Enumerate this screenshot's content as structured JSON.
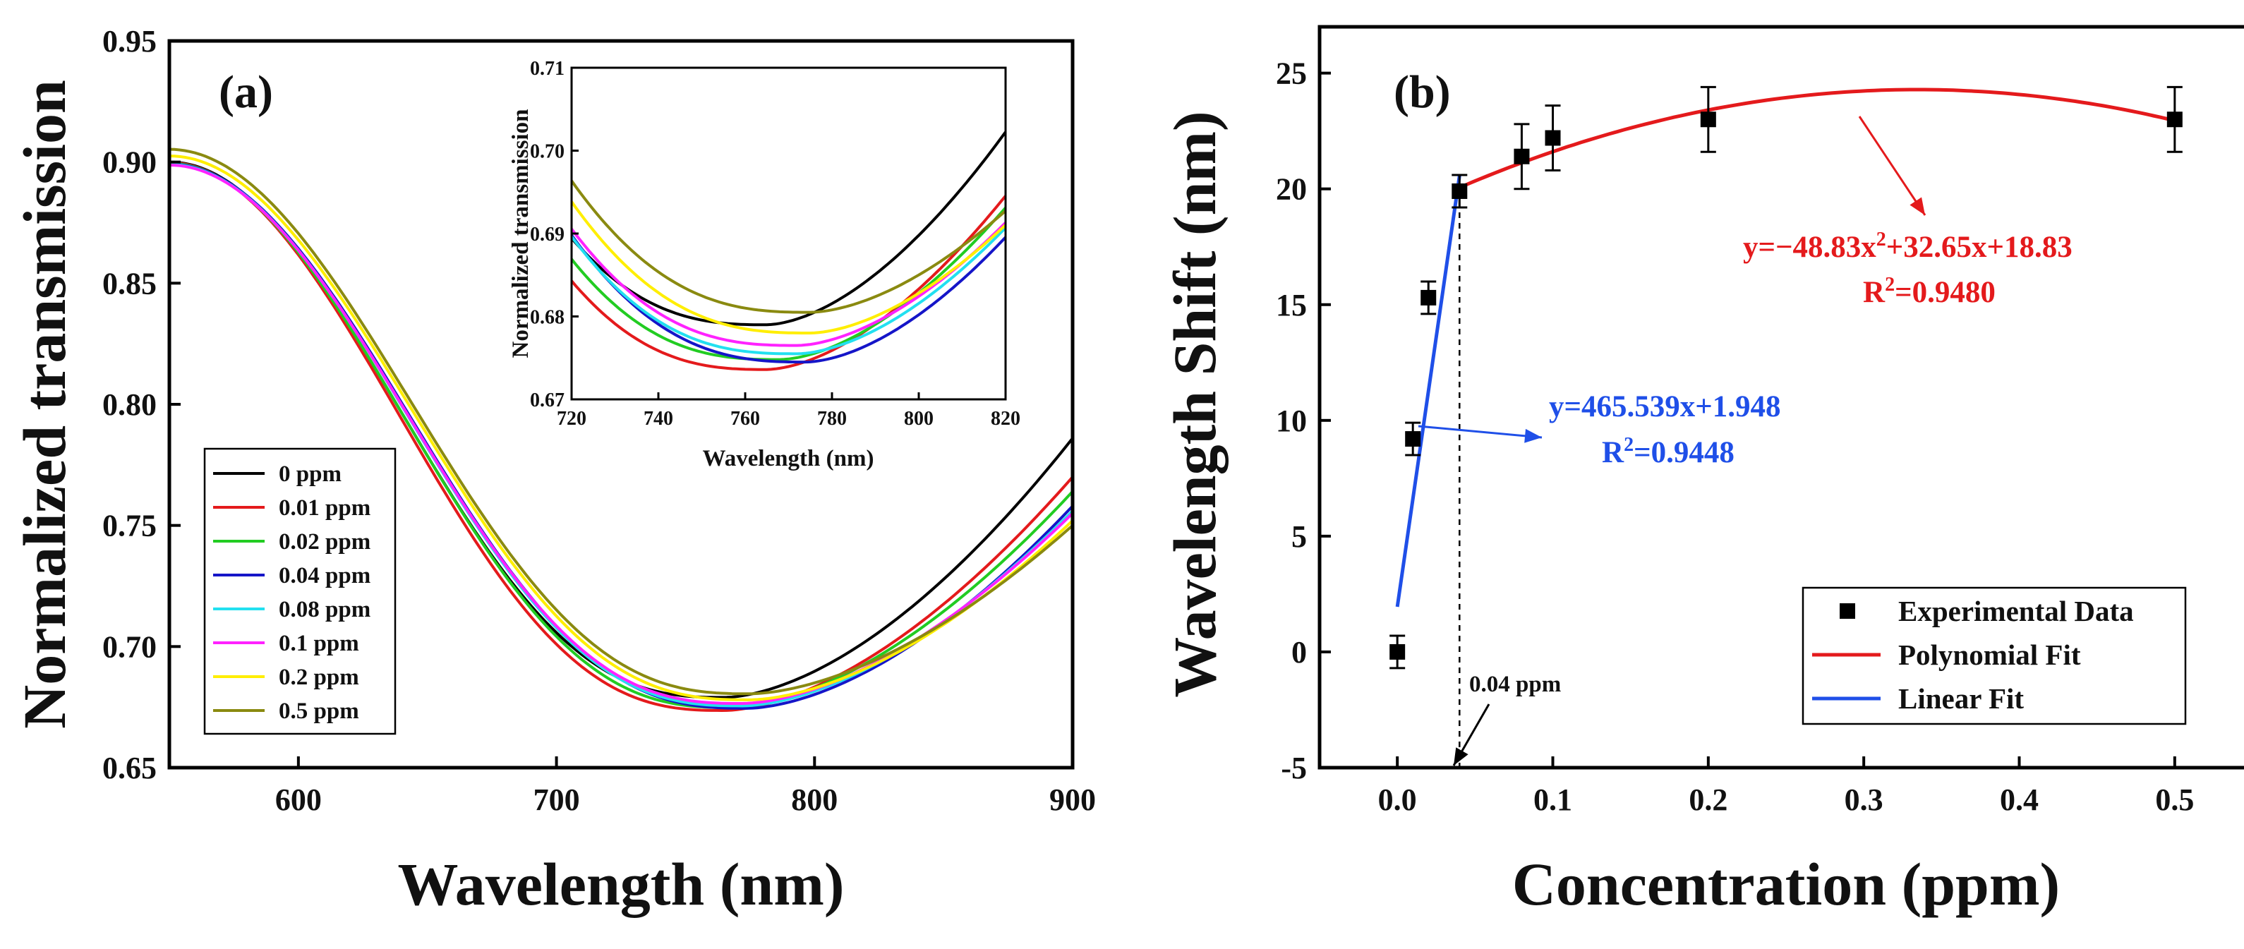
{
  "chart_data": [
    {
      "type": "line",
      "panel": "(a)",
      "xlabel": "Wavelength (nm)",
      "ylabel": "Normalized transmission",
      "xlim": [
        550,
        900
      ],
      "ylim": [
        0.65,
        0.95
      ],
      "xticks": [
        600,
        700,
        800,
        900
      ],
      "yticks": [
        0.65,
        0.7,
        0.75,
        0.8,
        0.85,
        0.9,
        0.95
      ],
      "legend_position": "bottom-left",
      "series": [
        {
          "name": "0 ppm",
          "color": "#000000",
          "min_wl": 765,
          "min_t": 0.679,
          "end_t": 0.786
        },
        {
          "name": "0.01 ppm",
          "color": "#e41a1c",
          "min_wl": 765,
          "min_t": 0.6736,
          "end_t": 0.77
        },
        {
          "name": "0.02 ppm",
          "color": "#22cc22",
          "min_wl": 768,
          "min_t": 0.6748,
          "end_t": 0.764
        },
        {
          "name": "0.04 ppm",
          "color": "#1515c8",
          "min_wl": 774,
          "min_t": 0.6745,
          "end_t": 0.758
        },
        {
          "name": "0.08 ppm",
          "color": "#22e0f0",
          "min_wl": 772,
          "min_t": 0.6755,
          "end_t": 0.756
        },
        {
          "name": "0.1 ppm",
          "color": "#ff22ff",
          "min_wl": 772,
          "min_t": 0.6765,
          "end_t": 0.755
        },
        {
          "name": "0.2 ppm",
          "color": "#ffee00",
          "min_wl": 775,
          "min_t": 0.678,
          "end_t": 0.752
        },
        {
          "name": "0.5 ppm",
          "color": "#8a8a10",
          "min_wl": 775,
          "min_t": 0.6805,
          "end_t": 0.75
        }
      ],
      "inset": {
        "xlabel": "Wavelength (nm)",
        "ylabel": "Normalized transmission",
        "xlim": [
          720,
          820
        ],
        "ylim": [
          0.67,
          0.71
        ],
        "xticks": [
          720,
          740,
          760,
          780,
          800,
          820
        ],
        "yticks": [
          0.67,
          0.68,
          0.69,
          0.7,
          0.71
        ]
      }
    },
    {
      "type": "scatter",
      "panel": "(b)",
      "xlabel": "Concentration (ppm)",
      "ylabel": "Wavelength Shift (nm)",
      "xlim": [
        -0.05,
        0.55
      ],
      "ylim": [
        -5,
        27
      ],
      "xticks": [
        0.0,
        0.1,
        0.2,
        0.3,
        0.4,
        0.5
      ],
      "xtick_labels": [
        "0.0",
        "0.1",
        "0.2",
        "0.3",
        "0.4",
        "0.5"
      ],
      "yticks": [
        -5,
        0,
        5,
        10,
        15,
        20,
        25
      ],
      "legend_position": "bottom-right",
      "points": [
        {
          "x": 0.0,
          "y": 0.0,
          "err": 0.7
        },
        {
          "x": 0.01,
          "y": 9.2,
          "err": 0.7
        },
        {
          "x": 0.02,
          "y": 15.3,
          "err": 0.7
        },
        {
          "x": 0.04,
          "y": 19.9,
          "err": 0.7
        },
        {
          "x": 0.08,
          "y": 21.4,
          "err": 1.4
        },
        {
          "x": 0.1,
          "y": 22.2,
          "err": 1.4
        },
        {
          "x": 0.2,
          "y": 23.0,
          "err": 1.4
        },
        {
          "x": 0.5,
          "y": 23.0,
          "err": 1.4
        }
      ],
      "linear_fit": {
        "slope": 465.539,
        "intercept": 1.948,
        "x_range": [
          0.0,
          0.04
        ],
        "color": "#1f4fe8"
      },
      "poly_fit": {
        "a": -48.83,
        "b": 32.65,
        "c": 18.83,
        "x_range": [
          0.04,
          0.5
        ],
        "color": "#e41a1c"
      },
      "annotations": {
        "poly_eq_pre": "y=−48.83x",
        "poly_eq_sup": "2",
        "poly_eq_post": "+32.65x+18.83",
        "poly_r2_pre": "R",
        "poly_r2_sup": "2",
        "poly_r2_post": "=0.9480",
        "lin_eq": "y=465.539x+1.948",
        "lin_r2_pre": "R",
        "lin_r2_sup": "2",
        "lin_r2_post": "=0.9448",
        "threshold_label": "0.04 ppm",
        "threshold_x": 0.04
      },
      "legend": [
        "Experimental Data",
        "Polynomial Fit",
        "Linear Fit"
      ]
    }
  ]
}
